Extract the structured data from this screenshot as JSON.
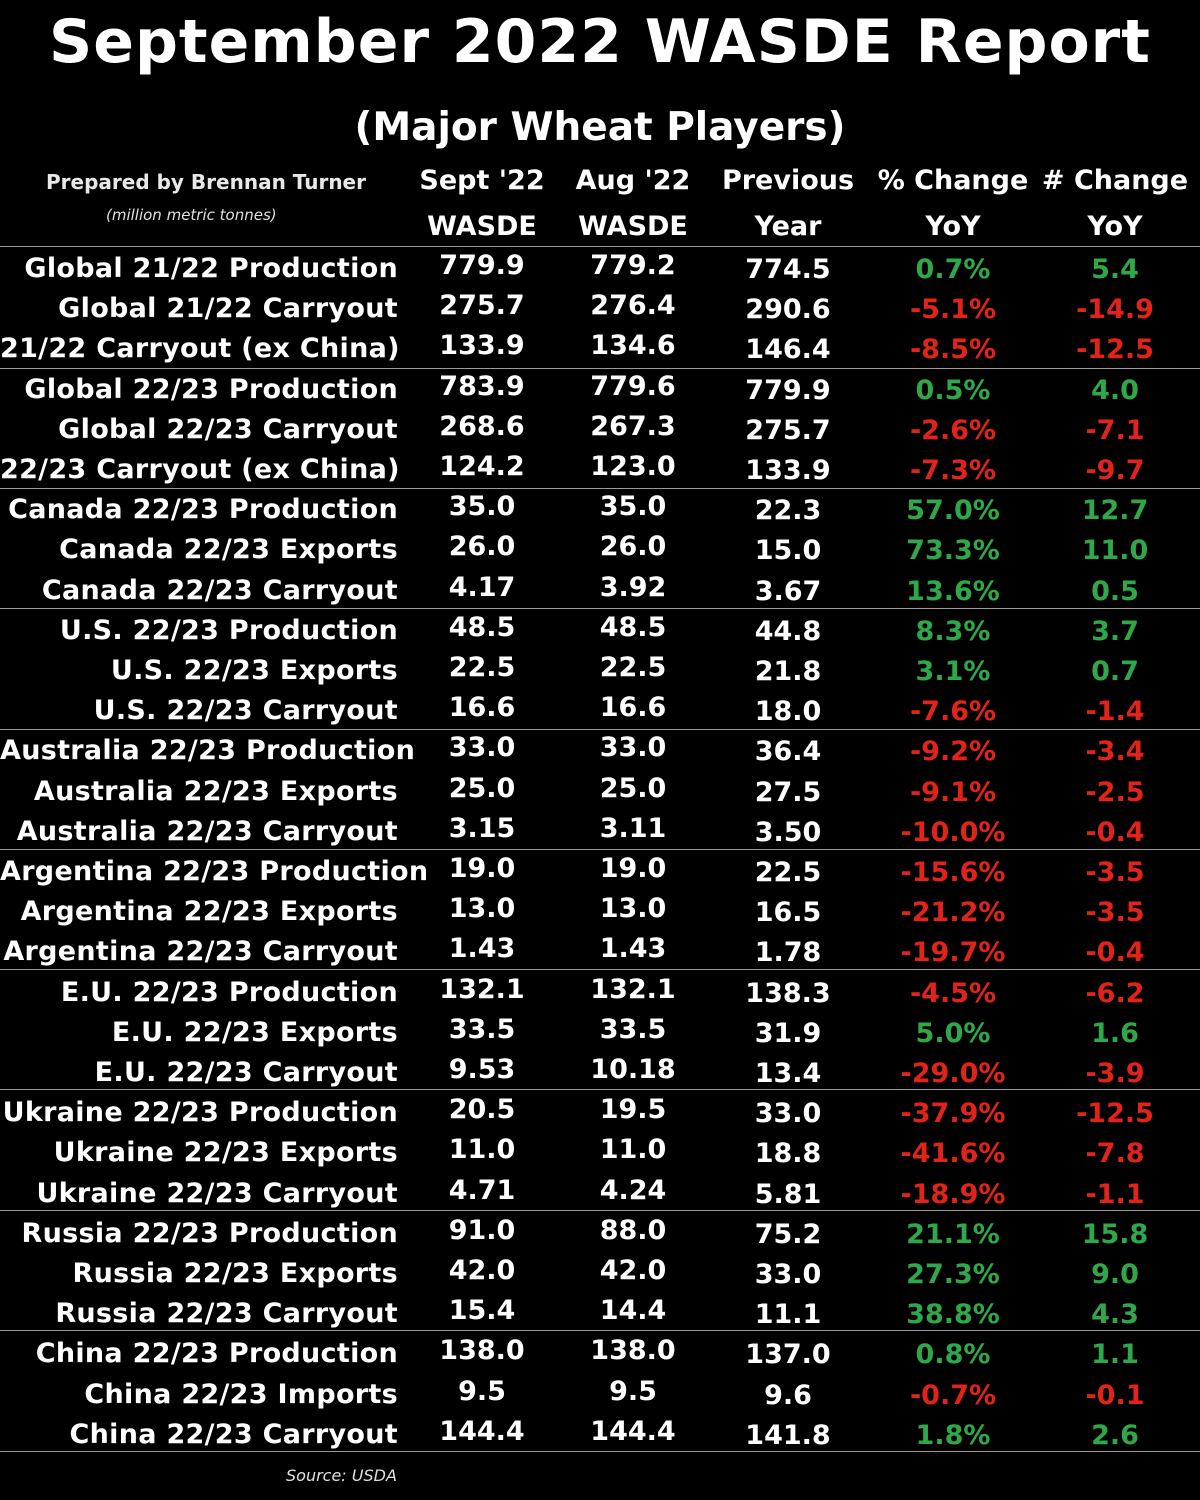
{
  "colors": {
    "positive": "#2fa84a",
    "negative": "#e2231a",
    "background": "#000000",
    "text": "#ffffff"
  },
  "chart_data": {
    "type": "table",
    "title": "September 2022 WASDE Report",
    "subtitle": "(Major Wheat Players)",
    "prepared_by": "Prepared by Brennan Turner",
    "units": "(million metric tonnes)",
    "source": "Source: USDA",
    "columns": [
      {
        "line1": "Sept '22",
        "line2": "WASDE"
      },
      {
        "line1": "Aug '22",
        "line2": "WASDE"
      },
      {
        "line1": "Previous",
        "line2": "Year"
      },
      {
        "line1": "% Change",
        "line2": "YoY"
      },
      {
        "line1": "# Change",
        "line2": "YoY"
      }
    ],
    "rows": [
      {
        "label": "Global 21/22 Production",
        "sept": "779.9",
        "aug": "779.2",
        "prev": "774.5",
        "pct": "0.7%",
        "num": "5.4",
        "sign": "pos"
      },
      {
        "label": "Global 21/22 Carryout",
        "sept": "275.7",
        "aug": "276.4",
        "prev": "290.6",
        "pct": "-5.1%",
        "num": "-14.9",
        "sign": "neg"
      },
      {
        "label": "21/22 Carryout (ex China)",
        "sept": "133.9",
        "aug": "134.6",
        "prev": "146.4",
        "pct": "-8.5%",
        "num": "-12.5",
        "sign": "neg"
      },
      {
        "label": "Global 22/23 Production",
        "sept": "783.9",
        "aug": "779.6",
        "prev": "779.9",
        "pct": "0.5%",
        "num": "4.0",
        "sign": "pos"
      },
      {
        "label": "Global 22/23 Carryout",
        "sept": "268.6",
        "aug": "267.3",
        "prev": "275.7",
        "pct": "-2.6%",
        "num": "-7.1",
        "sign": "neg"
      },
      {
        "label": "22/23 Carryout (ex China)",
        "sept": "124.2",
        "aug": "123.0",
        "prev": "133.9",
        "pct": "-7.3%",
        "num": "-9.7",
        "sign": "neg"
      },
      {
        "label": "Canada 22/23 Production",
        "sept": "35.0",
        "aug": "35.0",
        "prev": "22.3",
        "pct": "57.0%",
        "num": "12.7",
        "sign": "pos"
      },
      {
        "label": "Canada 22/23 Exports",
        "sept": "26.0",
        "aug": "26.0",
        "prev": "15.0",
        "pct": "73.3%",
        "num": "11.0",
        "sign": "pos"
      },
      {
        "label": "Canada 22/23 Carryout",
        "sept": "4.17",
        "aug": "3.92",
        "prev": "3.67",
        "pct": "13.6%",
        "num": "0.5",
        "sign": "pos"
      },
      {
        "label": "U.S. 22/23 Production",
        "sept": "48.5",
        "aug": "48.5",
        "prev": "44.8",
        "pct": "8.3%",
        "num": "3.7",
        "sign": "pos"
      },
      {
        "label": "U.S. 22/23 Exports",
        "sept": "22.5",
        "aug": "22.5",
        "prev": "21.8",
        "pct": "3.1%",
        "num": "0.7",
        "sign": "pos"
      },
      {
        "label": "U.S. 22/23 Carryout",
        "sept": "16.6",
        "aug": "16.6",
        "prev": "18.0",
        "pct": "-7.6%",
        "num": "-1.4",
        "sign": "neg"
      },
      {
        "label": "Australia 22/23 Production",
        "sept": "33.0",
        "aug": "33.0",
        "prev": "36.4",
        "pct": "-9.2%",
        "num": "-3.4",
        "sign": "neg"
      },
      {
        "label": "Australia 22/23 Exports",
        "sept": "25.0",
        "aug": "25.0",
        "prev": "27.5",
        "pct": "-9.1%",
        "num": "-2.5",
        "sign": "neg"
      },
      {
        "label": "Australia 22/23 Carryout",
        "sept": "3.15",
        "aug": "3.11",
        "prev": "3.50",
        "pct": "-10.0%",
        "num": "-0.4",
        "sign": "neg"
      },
      {
        "label": "Argentina 22/23 Production",
        "sept": "19.0",
        "aug": "19.0",
        "prev": "22.5",
        "pct": "-15.6%",
        "num": "-3.5",
        "sign": "neg"
      },
      {
        "label": "Argentina 22/23 Exports",
        "sept": "13.0",
        "aug": "13.0",
        "prev": "16.5",
        "pct": "-21.2%",
        "num": "-3.5",
        "sign": "neg"
      },
      {
        "label": "Argentina 22/23 Carryout",
        "sept": "1.43",
        "aug": "1.43",
        "prev": "1.78",
        "pct": "-19.7%",
        "num": "-0.4",
        "sign": "neg"
      },
      {
        "label": "E.U. 22/23 Production",
        "sept": "132.1",
        "aug": "132.1",
        "prev": "138.3",
        "pct": "-4.5%",
        "num": "-6.2",
        "sign": "neg"
      },
      {
        "label": "E.U. 22/23 Exports",
        "sept": "33.5",
        "aug": "33.5",
        "prev": "31.9",
        "pct": "5.0%",
        "num": "1.6",
        "sign": "pos"
      },
      {
        "label": "E.U. 22/23 Carryout",
        "sept": "9.53",
        "aug": "10.18",
        "prev": "13.4",
        "pct": "-29.0%",
        "num": "-3.9",
        "sign": "neg"
      },
      {
        "label": "Ukraine 22/23 Production",
        "sept": "20.5",
        "aug": "19.5",
        "prev": "33.0",
        "pct": "-37.9%",
        "num": "-12.5",
        "sign": "neg"
      },
      {
        "label": "Ukraine 22/23 Exports",
        "sept": "11.0",
        "aug": "11.0",
        "prev": "18.8",
        "pct": "-41.6%",
        "num": "-7.8",
        "sign": "neg"
      },
      {
        "label": "Ukraine 22/23 Carryout",
        "sept": "4.71",
        "aug": "4.24",
        "prev": "5.81",
        "pct": "-18.9%",
        "num": "-1.1",
        "sign": "neg"
      },
      {
        "label": "Russia 22/23 Production",
        "sept": "91.0",
        "aug": "88.0",
        "prev": "75.2",
        "pct": "21.1%",
        "num": "15.8",
        "sign": "pos"
      },
      {
        "label": "Russia 22/23 Exports",
        "sept": "42.0",
        "aug": "42.0",
        "prev": "33.0",
        "pct": "27.3%",
        "num": "9.0",
        "sign": "pos"
      },
      {
        "label": "Russia 22/23 Carryout",
        "sept": "15.4",
        "aug": "14.4",
        "prev": "11.1",
        "pct": "38.8%",
        "num": "4.3",
        "sign": "pos"
      },
      {
        "label": "China 22/23 Production",
        "sept": "138.0",
        "aug": "138.0",
        "prev": "137.0",
        "pct": "0.8%",
        "num": "1.1",
        "sign": "pos"
      },
      {
        "label": "China 22/23 Imports",
        "sept": "9.5",
        "aug": "9.5",
        "prev": "9.6",
        "pct": "-0.7%",
        "num": "-0.1",
        "sign": "neg"
      },
      {
        "label": "China 22/23 Carryout",
        "sept": "144.4",
        "aug": "144.4",
        "prev": "141.8",
        "pct": "1.8%",
        "num": "2.6",
        "sign": "pos"
      }
    ]
  }
}
